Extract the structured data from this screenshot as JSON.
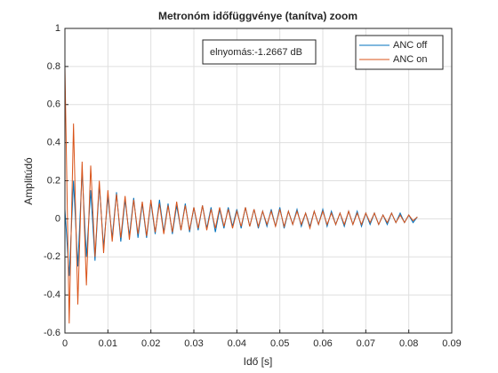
{
  "chart_data": {
    "type": "line",
    "title": "Metronóm időfüggvénye (tanítva) zoom",
    "xlabel": "Idő [s]",
    "ylabel": "Amplitúdó",
    "annotation": "elnyomás:-1.2667 dB",
    "x": [
      0,
      0.001,
      0.002,
      0.003,
      0.004,
      0.005,
      0.006,
      0.007,
      0.008,
      0.009,
      0.01,
      0.011,
      0.012,
      0.013,
      0.014,
      0.015,
      0.016,
      0.017,
      0.018,
      0.019,
      0.02,
      0.021,
      0.022,
      0.023,
      0.024,
      0.025,
      0.026,
      0.027,
      0.028,
      0.029,
      0.03,
      0.031,
      0.032,
      0.033,
      0.034,
      0.035,
      0.036,
      0.037,
      0.038,
      0.039,
      0.04,
      0.041,
      0.042,
      0.043,
      0.044,
      0.045,
      0.046,
      0.047,
      0.048,
      0.049,
      0.05,
      0.051,
      0.052,
      0.053,
      0.054,
      0.055,
      0.056,
      0.057,
      0.058,
      0.059,
      0.06,
      0.061,
      0.062,
      0.063,
      0.064,
      0.065,
      0.066,
      0.067,
      0.068,
      0.069,
      0.07,
      0.071,
      0.072,
      0.073,
      0.074,
      0.075,
      0.076,
      0.077,
      0.078,
      0.079,
      0.08,
      0.081,
      0.082
    ],
    "series": [
      {
        "name": "ANC off",
        "color": "#0072bd",
        "values": [
          0.05,
          -0.3,
          0.2,
          -0.25,
          0.25,
          -0.2,
          0.15,
          -0.22,
          0.18,
          -0.15,
          0.12,
          -0.1,
          0.14,
          -0.12,
          0.1,
          -0.09,
          0.11,
          -0.1,
          0.08,
          -0.1,
          0.09,
          -0.08,
          0.1,
          -0.07,
          0.08,
          -0.08,
          0.07,
          -0.06,
          0.08,
          -0.07,
          0.06,
          -0.06,
          0.07,
          -0.05,
          0.06,
          -0.07,
          0.05,
          -0.05,
          0.06,
          -0.04,
          0.05,
          -0.05,
          0.06,
          -0.04,
          0.05,
          -0.05,
          0.04,
          -0.04,
          0.05,
          -0.04,
          0.06,
          -0.05,
          0.04,
          -0.03,
          0.05,
          -0.04,
          0.03,
          -0.04,
          0.04,
          -0.03,
          0.05,
          -0.04,
          0.04,
          -0.03,
          0.03,
          -0.04,
          0.04,
          -0.03,
          0.04,
          -0.04,
          0.03,
          -0.03,
          0.03,
          -0.03,
          0.02,
          -0.03,
          0.03,
          -0.02,
          0.03,
          -0.02,
          0.02,
          -0.02,
          0.01
        ]
      },
      {
        "name": "ANC on",
        "color": "#d95319",
        "values": [
          0.8,
          -0.55,
          0.5,
          -0.45,
          0.3,
          -0.35,
          0.28,
          -0.2,
          0.2,
          -0.18,
          0.15,
          -0.12,
          0.13,
          -0.1,
          0.12,
          -0.11,
          0.1,
          -0.08,
          0.09,
          -0.09,
          0.1,
          -0.07,
          0.08,
          -0.08,
          0.07,
          -0.07,
          0.09,
          -0.06,
          0.07,
          -0.06,
          0.06,
          -0.05,
          0.07,
          -0.06,
          0.05,
          -0.05,
          0.06,
          -0.04,
          0.05,
          -0.05,
          0.04,
          -0.04,
          0.06,
          -0.04,
          0.05,
          -0.04,
          0.04,
          -0.03,
          0.04,
          -0.04,
          0.05,
          -0.04,
          0.04,
          -0.03,
          0.04,
          -0.03,
          0.03,
          -0.05,
          0.04,
          -0.03,
          0.04,
          -0.03,
          0.03,
          -0.03,
          0.03,
          -0.03,
          0.04,
          -0.03,
          0.03,
          -0.03,
          0.03,
          -0.02,
          0.03,
          -0.03,
          0.02,
          -0.02,
          0.03,
          -0.02,
          0.02,
          -0.02,
          0.02,
          -0.01,
          0.01
        ]
      }
    ],
    "xlim": [
      0,
      0.09
    ],
    "xticks": [
      0,
      0.01,
      0.02,
      0.03,
      0.04,
      0.05,
      0.06,
      0.07,
      0.08,
      0.09
    ],
    "ylim": [
      -0.6,
      1
    ],
    "yticks": [
      -0.6,
      -0.4,
      -0.2,
      0,
      0.2,
      0.4,
      0.6,
      0.8,
      1
    ],
    "grid": true,
    "legend": "northeast"
  }
}
